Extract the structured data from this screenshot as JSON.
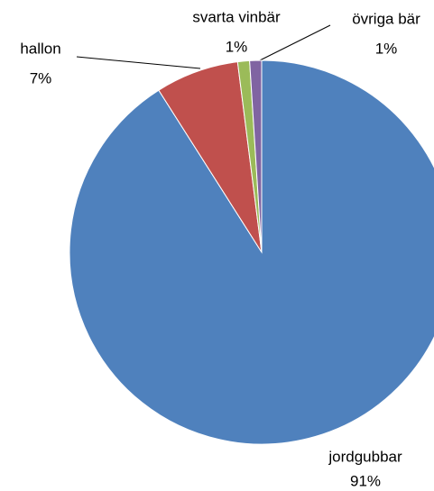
{
  "chart_data": {
    "type": "pie",
    "categories": [
      "jordgubbar",
      "hallon",
      "svarta vinbär",
      "övriga bär"
    ],
    "values": [
      91,
      7,
      1,
      1
    ],
    "value_labels": [
      "91%",
      "7%",
      "1%",
      "1%"
    ],
    "colors": [
      "#4f81bd",
      "#c0504d",
      "#9bbb59",
      "#8064a2"
    ]
  }
}
